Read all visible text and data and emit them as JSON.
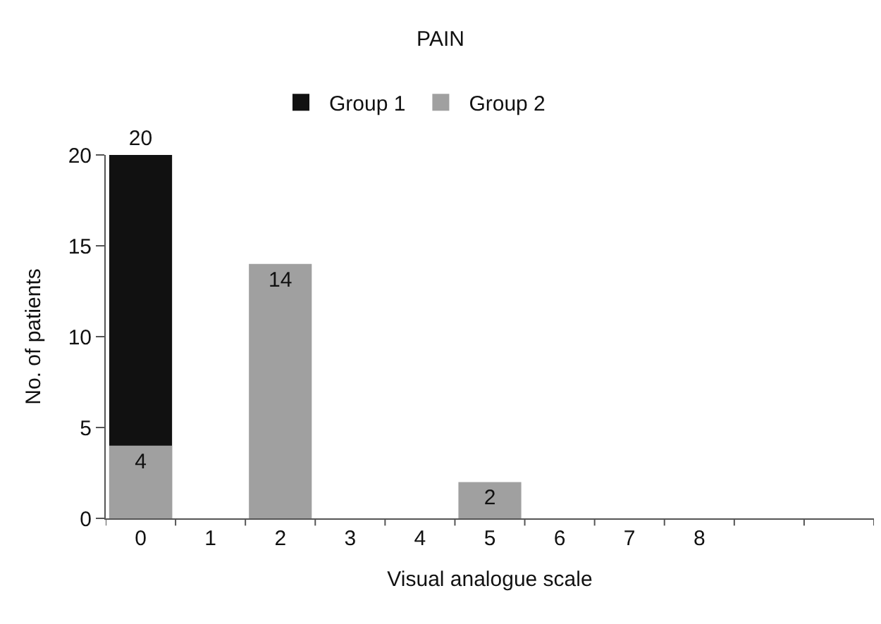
{
  "chart_data": {
    "type": "bar",
    "title": "PAIN",
    "xlabel": "Visual analogue scale",
    "ylabel": "No. of patients",
    "categories": [
      "0",
      "1",
      "2",
      "3",
      "4",
      "5",
      "6",
      "7",
      "8",
      null,
      null
    ],
    "series": [
      {
        "name": "Group 1",
        "color": "#111111",
        "values": [
          20,
          null,
          null,
          null,
          null,
          null,
          null,
          null,
          null,
          null,
          null
        ]
      },
      {
        "name": "Group 2",
        "color": "#a0a0a0",
        "values": [
          4,
          null,
          14,
          null,
          null,
          2,
          null,
          null,
          null,
          null,
          null
        ]
      }
    ],
    "ylim": [
      0,
      20
    ],
    "yticks": [
      0,
      5,
      10,
      15,
      20
    ],
    "data_labels": true,
    "legend": "top"
  }
}
